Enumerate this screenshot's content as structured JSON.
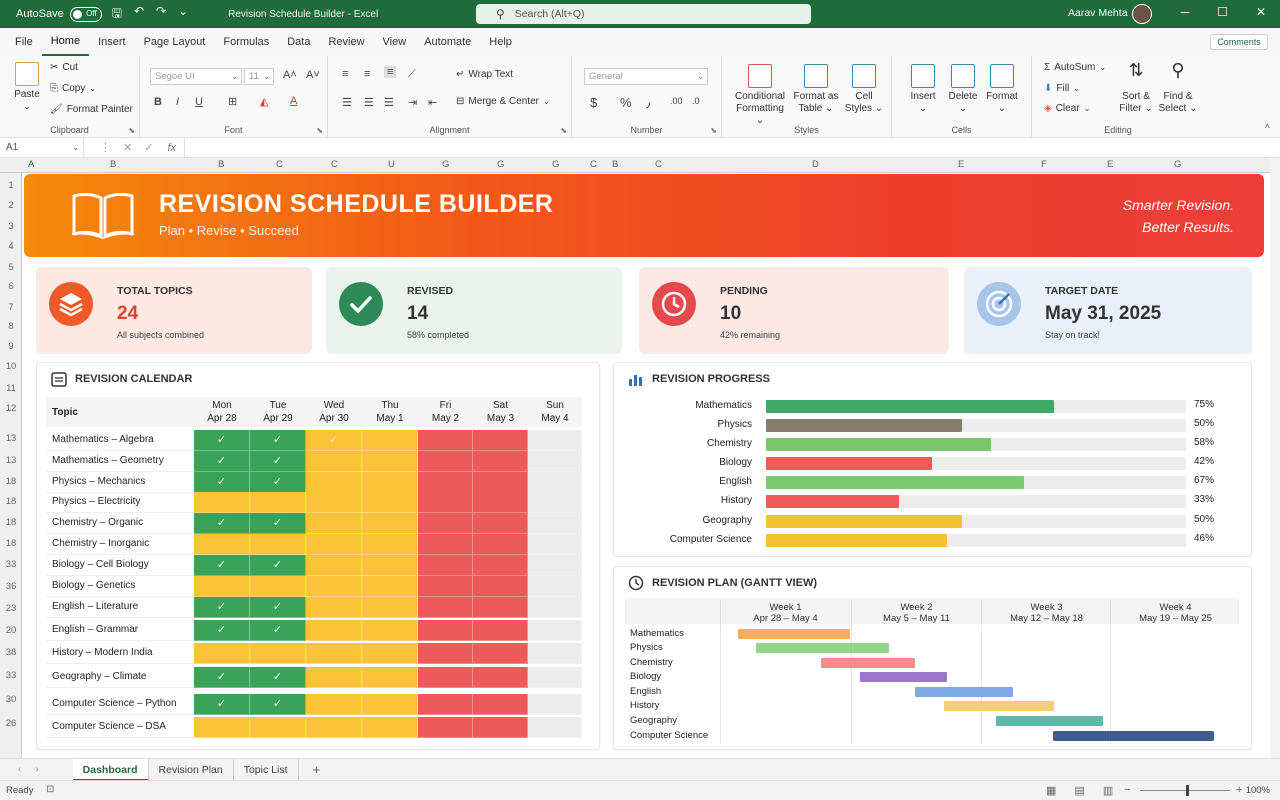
{
  "titlebar": {
    "autosave_label": "AutoSave",
    "autosave_state": "Off",
    "doc_title": "Revision Schedule Builder - Excel",
    "search_placeholder": "Search (Alt+Q)",
    "user_name": "Aarav Mehta"
  },
  "menu": {
    "tabs": [
      "File",
      "Home",
      "Insert",
      "Page Layout",
      "Formulas",
      "Data",
      "Review",
      "View",
      "Automate",
      "Help"
    ],
    "active": "Home",
    "comments_label": "Comments"
  },
  "ribbon": {
    "clipboard": {
      "paste": "Paste",
      "cut": "Cut",
      "copy": "Copy",
      "format_painter": "Format Painter",
      "name": "Clipboard"
    },
    "font": {
      "font_name": "Segoe UI",
      "font_size": "11",
      "name": "Font"
    },
    "alignment": {
      "wrap": "Wrap Text",
      "merge": "Merge & Center",
      "name": "Alignment"
    },
    "number": {
      "format": "General",
      "name": "Number"
    },
    "styles": {
      "conditional": "Conditional Formatting",
      "format_table": "Format as Table",
      "cell_styles": "Cell Styles",
      "name": "Styles"
    },
    "cells": {
      "insert": "Insert",
      "delete": "Delete",
      "format": "Format",
      "name": "Cells"
    },
    "editing": {
      "autosum": "AutoSum",
      "fill": "Fill",
      "clear": "Clear",
      "sort": "Sort & Filter",
      "find": "Find & Select",
      "name": "Editing"
    }
  },
  "formula_bar": {
    "cell_ref": "A1",
    "fx": "fx"
  },
  "column_headers": [
    "A",
    "B",
    "B",
    "C",
    "C",
    "U",
    "G",
    "G",
    "G",
    "C",
    "B",
    "C",
    "D",
    "E",
    "F",
    "E",
    "G"
  ],
  "row_headers": [
    "1",
    "2",
    "3",
    "4",
    "5",
    "6",
    "7",
    "8",
    "9",
    "10",
    "11",
    "12",
    "13",
    "13",
    "18",
    "18",
    "18",
    "18",
    "33",
    "36",
    "23",
    "20",
    "38",
    "33",
    "30",
    "26"
  ],
  "banner": {
    "title": "REVISION SCHEDULE BUILDER",
    "subtitle": "Plan  •  Revise  •  Succeed",
    "tagline1": "Smarter Revision.",
    "tagline2": "Better Results."
  },
  "kpis": [
    {
      "label": "TOTAL TOPICS",
      "value": "24",
      "sub": "All subjects combined",
      "icon": "layers-icon",
      "color": "#f05a28"
    },
    {
      "label": "REVISED",
      "value": "14",
      "sub": "58% completed",
      "icon": "check-icon",
      "color": "#2e8b57"
    },
    {
      "label": "PENDING",
      "value": "10",
      "sub": "42% remaining",
      "icon": "clock-icon",
      "color": "#e5484d"
    },
    {
      "label": "TARGET DATE",
      "value": "May 31, 2025",
      "sub": "Stay on track!",
      "icon": "target-icon",
      "color": "#7fa6d9"
    }
  ],
  "calendar": {
    "title": "REVISION CALENDAR",
    "topic_header": "Topic",
    "days": [
      {
        "day": "Mon",
        "date": "Apr 28"
      },
      {
        "day": "Tue",
        "date": "Apr 29"
      },
      {
        "day": "Wed",
        "date": "Apr 30"
      },
      {
        "day": "Thu",
        "date": "May 1"
      },
      {
        "day": "Fri",
        "date": "May 2"
      },
      {
        "day": "Sat",
        "date": "May 3"
      },
      {
        "day": "Sun",
        "date": "May 4"
      }
    ],
    "rows": [
      {
        "topic": "Mathematics – Algebra",
        "cells": [
          "done",
          "done",
          "yellowcheck",
          "yellow",
          "red",
          "red",
          "none"
        ]
      },
      {
        "topic": "Mathematics – Geometry",
        "cells": [
          "done",
          "done",
          "yellow",
          "yellow",
          "red",
          "red",
          "none"
        ]
      },
      {
        "topic": "Physics – Mechanics",
        "cells": [
          "done",
          "done",
          "yellow",
          "yellow",
          "red",
          "red",
          "none"
        ]
      },
      {
        "topic": "Physics – Electricity",
        "cells": [
          "yellow",
          "yellow",
          "yellow",
          "yellow",
          "red",
          "red",
          "none"
        ]
      },
      {
        "topic": "Chemistry – Organic",
        "cells": [
          "done",
          "done",
          "yellow",
          "yellow",
          "red",
          "red",
          "none"
        ]
      },
      {
        "topic": "Chemistry – Inorganic",
        "cells": [
          "yellow",
          "yellow",
          "yellow",
          "yellow",
          "red",
          "red",
          "none"
        ]
      },
      {
        "topic": "Biology – Cell Biology",
        "cells": [
          "done",
          "done",
          "yellow",
          "yellow",
          "red",
          "red",
          "none"
        ]
      },
      {
        "topic": "Biology – Genetics",
        "cells": [
          "yellow",
          "yellow",
          "yellow",
          "yellow",
          "red",
          "red",
          "none"
        ]
      },
      {
        "topic": "English – Literature",
        "cells": [
          "done",
          "done",
          "yellow",
          "yellow",
          "red",
          "red",
          "none"
        ]
      },
      {
        "topic": "English – Grammar",
        "cells": [
          "done",
          "done",
          "yellow",
          "yellow",
          "red",
          "red",
          "none"
        ]
      },
      {
        "topic": "History – Modern India",
        "cells": [
          "yellow",
          "yellow",
          "yellow",
          "yellow",
          "red",
          "red",
          "none"
        ]
      },
      {
        "topic": "Geography – Climate",
        "cells": [
          "done",
          "done",
          "yellow",
          "yellow",
          "red",
          "red",
          "none"
        ]
      },
      {
        "topic": "Computer Science – Python",
        "cells": [
          "done",
          "done",
          "yellow",
          "yellow",
          "red",
          "red",
          "none"
        ]
      },
      {
        "topic": "Computer Science – DSA",
        "cells": [
          "yellow",
          "yellow",
          "yellow",
          "yellow",
          "red",
          "red",
          "none"
        ]
      }
    ],
    "check": "✓"
  },
  "progress": {
    "title": "REVISION PROGRESS",
    "items": [
      {
        "subject": "Mathematics",
        "pct": 75,
        "label": "75%",
        "color": "#3fa866"
      },
      {
        "subject": "Physics",
        "pct": 50,
        "label": "50%",
        "color": "#857e6c"
      },
      {
        "subject": "Chemistry",
        "pct": 58,
        "label": "58%",
        "color": "#78c56c"
      },
      {
        "subject": "Biology",
        "pct": 42,
        "label": "42%",
        "color": "#ef5a5a"
      },
      {
        "subject": "English",
        "pct": 67,
        "label": "67%",
        "color": "#7cc96f"
      },
      {
        "subject": "History",
        "pct": 33,
        "label": "33%",
        "color": "#ef5a5a"
      },
      {
        "subject": "Geography",
        "pct": 50,
        "label": "50%",
        "color": "#f5c12e"
      },
      {
        "subject": "Computer Science",
        "pct": 46,
        "label": "46%",
        "color": "#f5c12e"
      }
    ]
  },
  "gantt": {
    "title": "REVISION PLAN (GANTT VIEW)",
    "weeks": [
      {
        "name": "Week 1",
        "range": "Apr 28 – May 4"
      },
      {
        "name": "Week 2",
        "range": "May 5 – May 11"
      },
      {
        "name": "Week 3",
        "range": "May 12 – May 18"
      },
      {
        "name": "Week 4",
        "range": "May 19 – May 25"
      }
    ],
    "tasks": [
      {
        "subject": "Mathematics",
        "start": 0.14,
        "end": 1.0,
        "color": "#f6ae5a"
      },
      {
        "subject": "Physics",
        "start": 0.28,
        "end": 1.3,
        "color": "#93d48a"
      },
      {
        "subject": "Chemistry",
        "start": 0.78,
        "end": 1.5,
        "color": "#f28b8b"
      },
      {
        "subject": "Biology",
        "start": 1.08,
        "end": 1.75,
        "color": "#9b77cc"
      },
      {
        "subject": "English",
        "start": 1.5,
        "end": 2.25,
        "color": "#7da9e4"
      },
      {
        "subject": "History",
        "start": 1.72,
        "end": 2.57,
        "color": "#f8cc74"
      },
      {
        "subject": "Geography",
        "start": 2.12,
        "end": 2.95,
        "color": "#5fb8a8"
      },
      {
        "subject": "Computer Science",
        "start": 2.56,
        "end": 3.8,
        "color": "#3f5c8e"
      }
    ]
  },
  "sheet_tabs": [
    "Dashboard",
    "Revision Plan",
    "Topic List"
  ],
  "status": {
    "ready": "Ready",
    "zoom": "100%"
  }
}
